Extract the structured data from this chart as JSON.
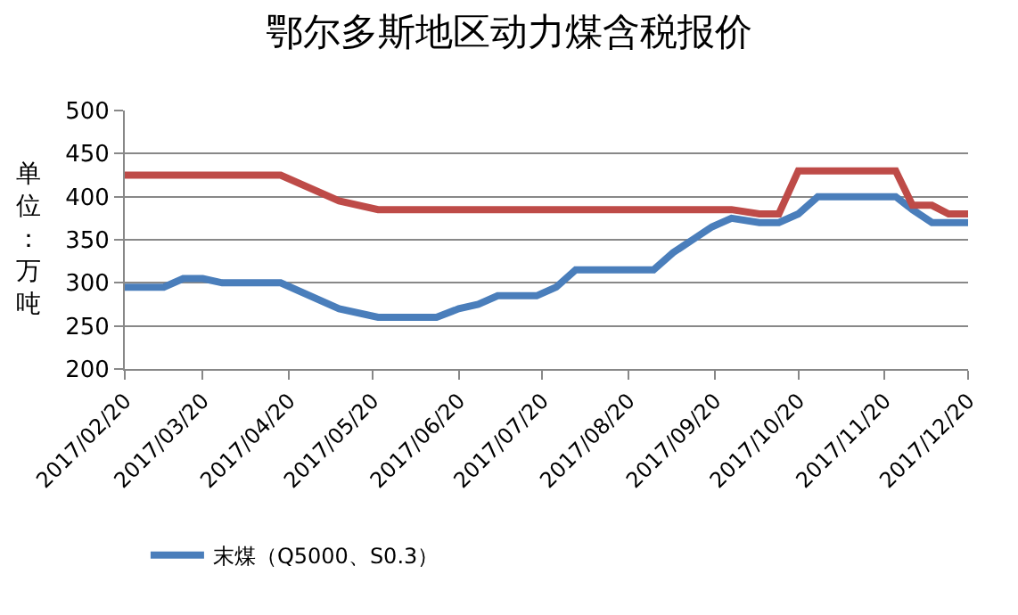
{
  "chart_data": {
    "type": "line",
    "title": "鄂尔多斯地区动力煤含税报价",
    "ylabel": "单位：万吨",
    "series": [
      {
        "name": "末煤（Q5000、S0.3）",
        "color": "#4a7ebb",
        "x": [
          "2017-02-20",
          "2017-03-06",
          "2017-03-13",
          "2017-03-20",
          "2017-03-27",
          "2017-04-17",
          "2017-05-08",
          "2017-05-22",
          "2017-06-12",
          "2017-06-20",
          "2017-06-27",
          "2017-07-04",
          "2017-07-18",
          "2017-07-25",
          "2017-08-01",
          "2017-08-29",
          "2017-09-05",
          "2017-09-12",
          "2017-09-19",
          "2017-09-26",
          "2017-10-06",
          "2017-10-13",
          "2017-10-20",
          "2017-10-27",
          "2017-11-24",
          "2017-11-30",
          "2017-12-07",
          "2017-12-20"
        ],
        "values": [
          295,
          295,
          305,
          305,
          300,
          300,
          270,
          260,
          260,
          270,
          275,
          285,
          285,
          295,
          315,
          315,
          335,
          350,
          365,
          375,
          370,
          370,
          380,
          400,
          400,
          385,
          370,
          370
        ]
      },
      {
        "color": "#be4b48",
        "x": [
          "2017-02-20",
          "2017-04-17",
          "2017-05-08",
          "2017-05-22",
          "2017-09-26",
          "2017-10-06",
          "2017-10-13",
          "2017-10-20",
          "2017-11-24",
          "2017-11-30",
          "2017-12-07",
          "2017-12-13",
          "2017-12-20"
        ],
        "values": [
          425,
          425,
          395,
          385,
          385,
          380,
          380,
          430,
          430,
          390,
          390,
          380,
          380
        ]
      }
    ],
    "xlim": [
      "2017-02-20",
      "2017-12-20"
    ],
    "xticks": [
      {
        "value": "2017-02-20",
        "label": "2017/02/20"
      },
      {
        "value": "2017-03-20",
        "label": "2017/03/20"
      },
      {
        "value": "2017-04-20",
        "label": "2017/04/20"
      },
      {
        "value": "2017-05-20",
        "label": "2017/05/20"
      },
      {
        "value": "2017-06-20",
        "label": "2017/06/20"
      },
      {
        "value": "2017-07-20",
        "label": "2017/07/20"
      },
      {
        "value": "2017-08-20",
        "label": "2017/08/20"
      },
      {
        "value": "2017-09-20",
        "label": "2017/09/20"
      },
      {
        "value": "2017-10-20",
        "label": "2017/10/20"
      },
      {
        "value": "2017-11-20",
        "label": "2017/11/20"
      },
      {
        "value": "2017-12-20",
        "label": "2017/12/20"
      }
    ],
    "ylim": [
      200,
      500
    ],
    "yticks": [
      200,
      250,
      300,
      350,
      400,
      450,
      500
    ],
    "grid": "y",
    "legend": "bottom",
    "marker": "none",
    "line_style": "solid"
  }
}
